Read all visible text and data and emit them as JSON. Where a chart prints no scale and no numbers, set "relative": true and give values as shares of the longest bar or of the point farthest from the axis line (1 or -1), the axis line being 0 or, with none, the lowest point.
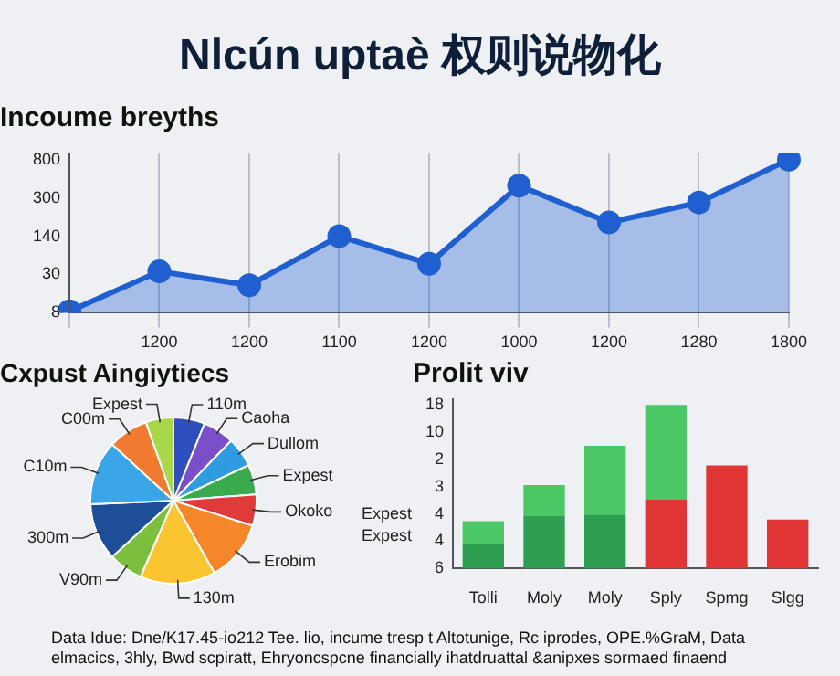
{
  "chart_data": [
    {
      "type": "other",
      "title": "Nlcún uptaè 权则说物化",
      "annotations": [
        "Data Idue: Dne/K17.45-io212 Tee. lio, incume tresp t Altotunige, Rc iprodes, OPE.%GraM, Data elmacics, 3hly, Bwd scpiratt, Ehryoncspcne financially ihatdruattal &anipxes sormaed finaend"
      ]
    },
    {
      "type": "area",
      "title": "Incoume breyths",
      "categories": [
        null,
        "1200",
        "1200",
        "1100",
        "1200",
        "1000",
        "1200",
        "1280",
        "1800"
      ],
      "values": [
        0.01,
        0.27,
        0.18,
        0.5,
        0.32,
        0.83,
        0.59,
        0.72,
        1
      ],
      "color": "#1f5fcf",
      "relative": true,
      "annotations": [
        "800",
        "300",
        "140",
        "30",
        "8"
      ],
      "grid": "x",
      "marker": "circle"
    },
    {
      "type": "pie",
      "title": "Cxpust Aingiytiecs",
      "categories": [
        "110m",
        "Caoha",
        "Dullom",
        "Expest",
        "Okoko",
        "Erobim",
        "130m",
        "V90m",
        "300m",
        "C10m",
        "C00m",
        "Expest"
      ],
      "values": [
        6.1,
        6.1,
        5.8,
        5.8,
        6.1,
        11.9,
        14.7,
        6.7,
        11.1,
        12.5,
        7.8,
        5.4
      ],
      "colors": [
        "#2f4fbf",
        "#7b4fc9",
        "#2f9be0",
        "#3aaa4f",
        "#e03a3a",
        "#f5862a",
        "#fbc531",
        "#7cbf3f",
        "#1f4e99",
        "#3aa6e8",
        "#f07a30",
        "#a8d84a"
      ],
      "annotations": [
        "Expest",
        "Expest"
      ]
    },
    {
      "type": "bar",
      "title": "Prolit viv",
      "categories": [
        "Tolli",
        "Moly",
        "Moly",
        "Sply",
        "Spmg",
        "Slgg"
      ],
      "stacked": true,
      "series": [
        {
          "colors": [
            "#2e9e50",
            "#2e9e50",
            "#2e9e50",
            "#e03535",
            "#e03535",
            "#e03535"
          ],
          "values": [
            0.15,
            0.32,
            0.33,
            0.42,
            0.63,
            0.3
          ]
        },
        {
          "color": "#4cc766",
          "values": [
            0.14,
            0.19,
            0.42,
            0.58,
            null,
            null
          ]
        }
      ],
      "relative": true,
      "annotations": [
        "18",
        "10",
        "2",
        "3",
        "4",
        "4",
        "6"
      ]
    }
  ]
}
